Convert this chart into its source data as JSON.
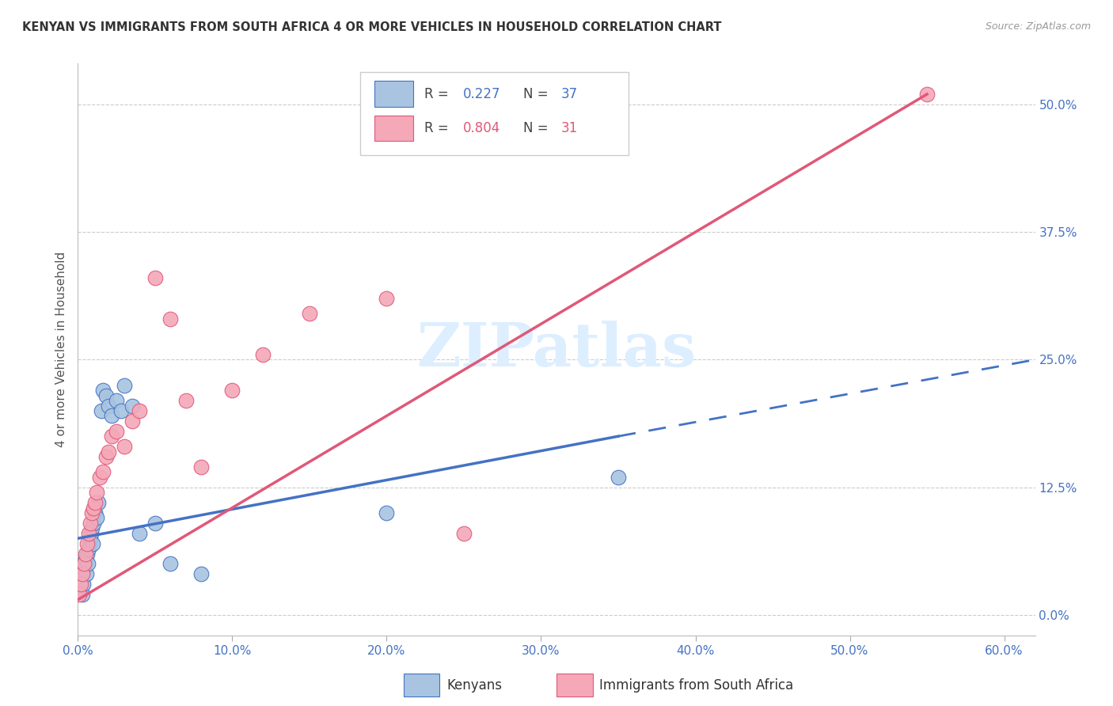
{
  "title": "KENYAN VS IMMIGRANTS FROM SOUTH AFRICA 4 OR MORE VEHICLES IN HOUSEHOLD CORRELATION CHART",
  "source": "Source: ZipAtlas.com",
  "ylabel_label": "4 or more Vehicles in Household",
  "xlim": [
    0,
    62
  ],
  "ylim": [
    -2,
    54
  ],
  "kenyan_color": "#a8c4e0",
  "sa_color": "#f4a8b8",
  "kenyan_line_color": "#4472c4",
  "sa_line_color": "#e05878",
  "watermark_color": "#ddeeff",
  "kenyan_x": [
    0.1,
    0.15,
    0.2,
    0.25,
    0.3,
    0.35,
    0.4,
    0.45,
    0.5,
    0.55,
    0.6,
    0.65,
    0.7,
    0.75,
    0.8,
    0.85,
    0.9,
    0.95,
    1.0,
    1.1,
    1.2,
    1.3,
    1.5,
    1.6,
    1.8,
    2.0,
    2.2,
    2.5,
    2.8,
    3.0,
    3.5,
    4.0,
    5.0,
    6.0,
    8.0,
    20.0,
    35.0
  ],
  "kenyan_y": [
    2.5,
    3.0,
    3.5,
    4.0,
    2.0,
    3.0,
    4.5,
    5.0,
    5.5,
    4.0,
    6.0,
    5.0,
    6.5,
    7.0,
    7.5,
    8.0,
    8.5,
    7.0,
    9.0,
    10.0,
    9.5,
    11.0,
    20.0,
    22.0,
    21.5,
    20.5,
    19.5,
    21.0,
    20.0,
    22.5,
    20.5,
    8.0,
    9.0,
    5.0,
    4.0,
    10.0,
    13.5
  ],
  "sa_x": [
    0.1,
    0.2,
    0.3,
    0.4,
    0.5,
    0.6,
    0.7,
    0.8,
    0.9,
    1.0,
    1.1,
    1.2,
    1.4,
    1.6,
    1.8,
    2.0,
    2.2,
    2.5,
    3.0,
    3.5,
    4.0,
    5.0,
    6.0,
    7.0,
    8.0,
    10.0,
    12.0,
    15.0,
    20.0,
    25.0,
    55.0
  ],
  "sa_y": [
    2.0,
    3.0,
    4.0,
    5.0,
    6.0,
    7.0,
    8.0,
    9.0,
    10.0,
    10.5,
    11.0,
    12.0,
    13.5,
    14.0,
    15.5,
    16.0,
    17.5,
    18.0,
    16.5,
    19.0,
    20.0,
    33.0,
    29.0,
    21.0,
    14.5,
    22.0,
    25.5,
    29.5,
    31.0,
    8.0,
    51.0
  ],
  "kenyan_line_x0": 0,
  "kenyan_line_y0": 7.5,
  "kenyan_line_x1": 35,
  "kenyan_line_y1": 17.5,
  "kenyan_line_x2": 62,
  "kenyan_line_y2": 25.0,
  "sa_line_x0": 0,
  "sa_line_y0": 1.5,
  "sa_line_x1": 55,
  "sa_line_y1": 51.0,
  "xtick_vals": [
    0,
    10,
    20,
    30,
    40,
    50,
    60
  ],
  "xtick_labels": [
    "0.0%",
    "10.0%",
    "20.0%",
    "30.0%",
    "40.0%",
    "50.0%",
    "60.0%"
  ],
  "ytick_vals": [
    0,
    12.5,
    25.0,
    37.5,
    50.0
  ],
  "ytick_labels": [
    "0.0%",
    "12.5%",
    "25.0%",
    "37.5%",
    "50.0%"
  ]
}
